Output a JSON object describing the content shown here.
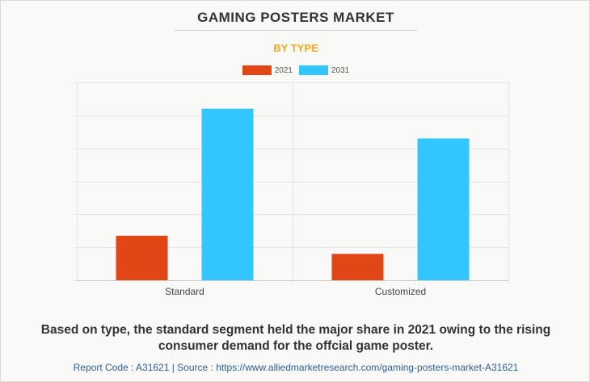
{
  "header": {
    "title": "GAMING POSTERS MARKET",
    "subtitle": "BY TYPE"
  },
  "colors": {
    "series_2021": "#e14716",
    "series_2031": "#33c6fe",
    "subtitle": "#f7a823",
    "footer": "#2f5d9e"
  },
  "chart_data": {
    "type": "bar",
    "title": "GAMING POSTERS MARKET",
    "subtitle": "BY TYPE",
    "categories": [
      "Standard",
      "Customized"
    ],
    "series": [
      {
        "name": "2021",
        "values": [
          13.5,
          8
        ]
      },
      {
        "name": "2031",
        "values": [
          52,
          43
        ]
      }
    ],
    "ylim": [
      0,
      60
    ],
    "y_gridlines": [
      0,
      10,
      20,
      30,
      40,
      50,
      60
    ],
    "xlabel": "",
    "ylabel": "",
    "grid": true,
    "legend": "top-center",
    "y_tick_labels_shown": false
  },
  "caption": "Based on type, the standard segment held the major share in 2021 owing to the rising consumer demand for the offcial game poster.",
  "footer": {
    "text": "Report Code : A31621  |  Source : https://www.alliedmarketresearch.com/gaming-posters-market-A31621"
  }
}
